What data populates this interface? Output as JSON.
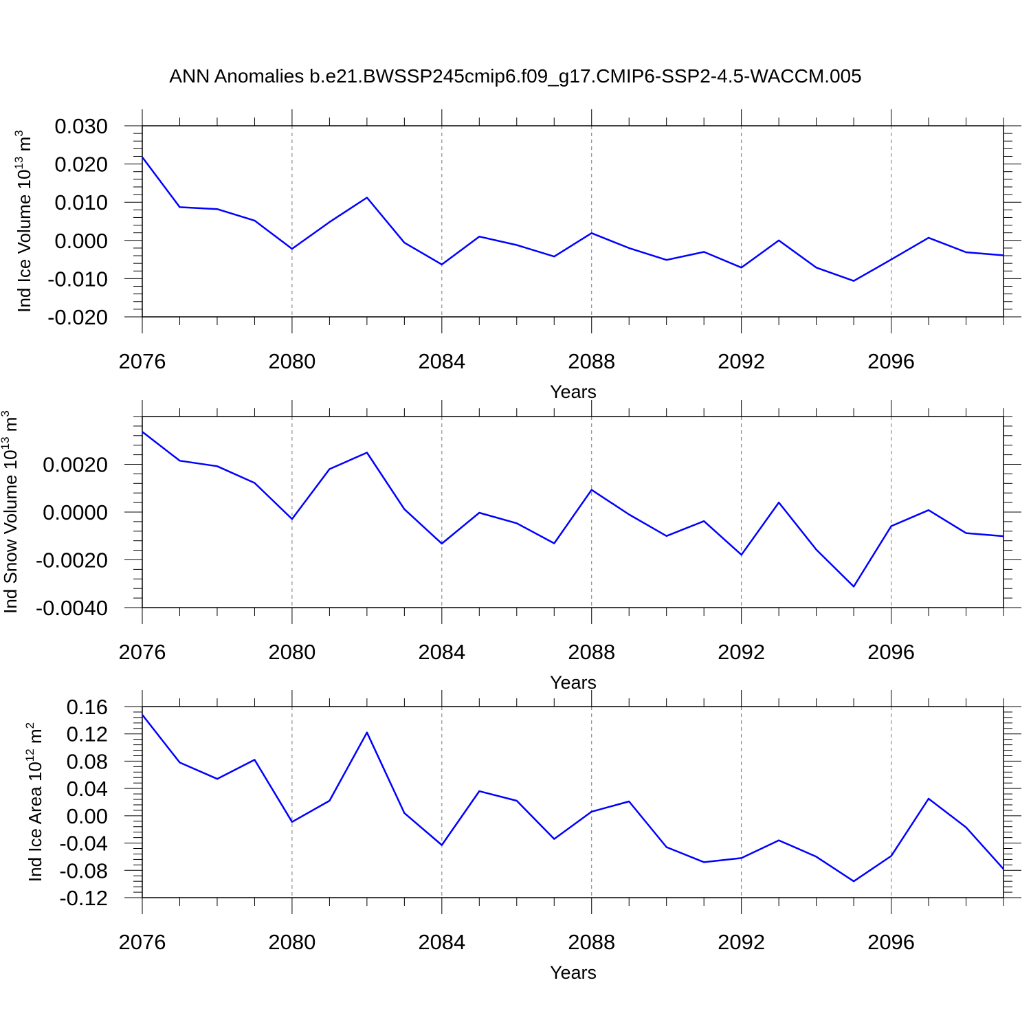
{
  "title": "ANN Anomalies b.e21.BWSSP245cmip6.f09_g17.CMIP6-SSP2-4.5-WACCM.005",
  "colors": {
    "line": "#0000ff",
    "axis": "#000000",
    "grid": "#777777"
  },
  "chart_data": [
    {
      "type": "line",
      "ylabel": {
        "main": "Ind Ice Volume 10",
        "sup": "13",
        "unit": " m",
        "unit_sup": "3"
      },
      "xlabel": "Years",
      "xlim": [
        2076,
        2099
      ],
      "xticks": [
        2076,
        2080,
        2084,
        2088,
        2092,
        2096
      ],
      "xtick_labels": [
        "2076",
        "2080",
        "2084",
        "2088",
        "2092",
        "2096"
      ],
      "ylim": [
        -0.02,
        0.03
      ],
      "yticks": [
        -0.02,
        -0.01,
        0.0,
        0.01,
        0.02,
        0.03
      ],
      "ytick_labels": [
        "-0.020",
        "-0.010",
        "0.000",
        "0.010",
        "0.020",
        "0.030"
      ],
      "grid": "vertical dashed at major x ticks",
      "x": [
        2076,
        2077,
        2078,
        2079,
        2080,
        2081,
        2082,
        2083,
        2084,
        2085,
        2086,
        2087,
        2088,
        2089,
        2090,
        2091,
        2092,
        2093,
        2094,
        2095,
        2096,
        2097,
        2098,
        2099
      ],
      "y": [
        0.0218,
        0.0087,
        0.0082,
        0.0052,
        -0.0022,
        0.0048,
        0.0112,
        -0.0006,
        -0.0063,
        0.001,
        -0.0012,
        -0.0042,
        0.0019,
        -0.002,
        -0.0051,
        -0.003,
        -0.0071,
        0.0,
        -0.0071,
        -0.0106,
        -0.005,
        0.0007,
        -0.0031,
        -0.0039
      ]
    },
    {
      "type": "line",
      "ylabel": {
        "main": "Ind Snow Volume 10",
        "sup": "13",
        "unit": " m",
        "unit_sup": "3"
      },
      "xlabel": "Years",
      "xlim": [
        2076,
        2099
      ],
      "xticks": [
        2076,
        2080,
        2084,
        2088,
        2092,
        2096
      ],
      "xtick_labels": [
        "2076",
        "2080",
        "2084",
        "2088",
        "2092",
        "2096"
      ],
      "ylim": [
        -0.004,
        0.004
      ],
      "yticks": [
        -0.004,
        -0.002,
        0.0,
        0.002
      ],
      "ytick_labels": [
        "-0.0040",
        "-0.0020",
        "0.0000",
        "0.0020"
      ],
      "grid": "vertical dashed at major x ticks",
      "x": [
        2076,
        2077,
        2078,
        2079,
        2080,
        2081,
        2082,
        2083,
        2084,
        2085,
        2086,
        2087,
        2088,
        2089,
        2090,
        2091,
        2092,
        2093,
        2094,
        2095,
        2096,
        2097,
        2098,
        2099
      ],
      "y": [
        0.00336,
        0.00215,
        0.00192,
        0.00122,
        -0.00029,
        0.0018,
        0.00249,
        0.00012,
        -0.00132,
        -3e-05,
        -0.00047,
        -0.00131,
        0.00093,
        -0.0001,
        -0.001,
        -0.00038,
        -0.00179,
        0.0004,
        -0.00157,
        -0.00312,
        -0.00059,
        8e-05,
        -0.00088,
        -0.00101
      ]
    },
    {
      "type": "line",
      "ylabel": {
        "main": "Ind Ice Area 10",
        "sup": "12",
        "unit": " m",
        "unit_sup": "2"
      },
      "xlabel": "Years",
      "xlim": [
        2076,
        2099
      ],
      "xticks": [
        2076,
        2080,
        2084,
        2088,
        2092,
        2096
      ],
      "xtick_labels": [
        "2076",
        "2080",
        "2084",
        "2088",
        "2092",
        "2096"
      ],
      "ylim": [
        -0.12,
        0.16
      ],
      "yticks": [
        -0.12,
        -0.08,
        -0.04,
        0.0,
        0.04,
        0.08,
        0.12,
        0.16
      ],
      "ytick_labels": [
        "-0.12",
        "-0.08",
        "-0.04",
        "0.00",
        "0.04",
        "0.08",
        "0.12",
        "0.16"
      ],
      "grid": "vertical dashed at major x ticks",
      "x": [
        2076,
        2077,
        2078,
        2079,
        2080,
        2081,
        2082,
        2083,
        2084,
        2085,
        2086,
        2087,
        2088,
        2089,
        2090,
        2091,
        2092,
        2093,
        2094,
        2095,
        2096,
        2097,
        2098,
        2099
      ],
      "y": [
        0.148,
        0.078,
        0.054,
        0.082,
        -0.009,
        0.022,
        0.122,
        0.004,
        -0.043,
        0.036,
        0.022,
        -0.034,
        0.006,
        0.021,
        -0.046,
        -0.068,
        -0.062,
        -0.036,
        -0.06,
        -0.096,
        -0.059,
        0.025,
        -0.017,
        -0.078
      ]
    }
  ]
}
